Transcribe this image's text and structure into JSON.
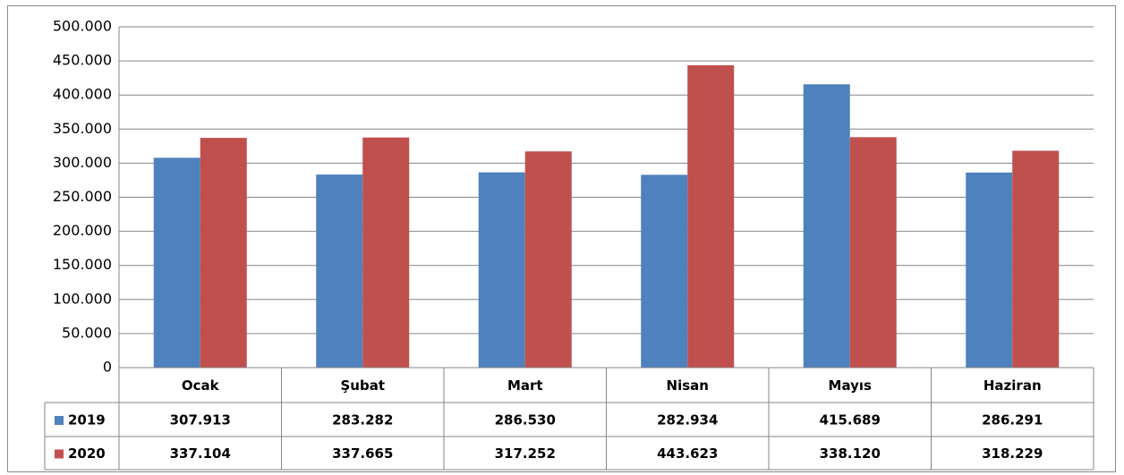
{
  "chart_data": {
    "type": "bar",
    "categories": [
      "Ocak",
      "Şubat",
      "Mart",
      "Nisan",
      "Mayıs",
      "Haziran"
    ],
    "series": [
      {
        "name": "2019",
        "color": "#4f81bd",
        "values": [
          307913,
          283282,
          286530,
          282934,
          415689,
          286291
        ],
        "value_labels": [
          "307.913",
          "283.282",
          "286.530",
          "282.934",
          "415.689",
          "286.291"
        ]
      },
      {
        "name": "2020",
        "color": "#c0504d",
        "values": [
          337104,
          337665,
          317252,
          443623,
          338120,
          318229
        ],
        "value_labels": [
          "337.104",
          "337.665",
          "317.252",
          "443.623",
          "338.120",
          "318.229"
        ]
      }
    ],
    "ylim": [
      0,
      500000
    ],
    "yticks": [
      0,
      {
        "value": 50000,
        "label": "50.000"
      },
      {
        "value": 100000,
        "label": "100.000"
      },
      {
        "value": 150000,
        "label": "150.000"
      },
      {
        "value": 200000,
        "label": "200.000"
      },
      {
        "value": 250000,
        "label": "250.000"
      },
      {
        "value": 300000,
        "label": "300.000"
      },
      {
        "value": 350000,
        "label": "350.000"
      },
      {
        "value": 400000,
        "label": "400.000"
      },
      {
        "value": 450000,
        "label": "450.000"
      },
      {
        "value": 500000,
        "label": "500.000"
      }
    ],
    "grid": true
  }
}
